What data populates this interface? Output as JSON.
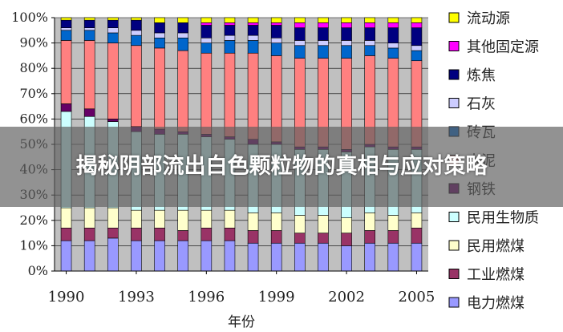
{
  "overlay": {
    "title": "揭秘阴部流出白色颗粒物的真相与应对策略"
  },
  "chart_data": {
    "type": "bar",
    "stacked": true,
    "percent_stacked": true,
    "title": "",
    "xlabel": "年份",
    "ylabel": "",
    "ylim": [
      0,
      100
    ],
    "y_ticks": [
      "0%",
      "10%",
      "20%",
      "30%",
      "40%",
      "50%",
      "60%",
      "70%",
      "80%",
      "90%",
      "100%"
    ],
    "x_tick_labels": [
      "1990",
      "1993",
      "1996",
      "1999",
      "2002",
      "2005"
    ],
    "categories": [
      "1990",
      "1991",
      "1992",
      "1993",
      "1994",
      "1995",
      "1996",
      "1997",
      "1998",
      "1999",
      "2000",
      "2001",
      "2002",
      "2003",
      "2004",
      "2005"
    ],
    "grid": true,
    "legend_position": "right",
    "series": [
      {
        "name": "电力燃煤",
        "color": "#9999ff",
        "values": [
          12,
          12,
          13,
          12,
          12,
          12,
          12,
          12,
          11,
          11,
          11,
          11,
          10,
          11,
          11,
          11
        ]
      },
      {
        "name": "工业燃煤",
        "color": "#993366",
        "values": [
          5,
          5,
          4,
          5,
          5,
          4,
          5,
          5,
          5,
          5,
          4,
          4,
          5,
          5,
          5,
          6
        ]
      },
      {
        "name": "民用燃煤",
        "color": "#ffffcc",
        "values": [
          8,
          8,
          8,
          7,
          7,
          8,
          7,
          7,
          7,
          7,
          7,
          7,
          6,
          7,
          6,
          6
        ]
      },
      {
        "name": "民用生物质",
        "color": "#ccffff",
        "values": [
          38,
          36,
          34,
          31,
          30,
          30,
          29,
          28,
          27,
          27,
          26,
          26,
          26,
          26,
          26,
          25
        ]
      },
      {
        "name": "钢铁",
        "color": "#660066",
        "values": [
          3,
          3,
          1,
          2,
          2,
          1,
          1,
          1,
          2,
          1,
          1,
          1,
          1,
          1,
          1,
          1
        ]
      },
      {
        "name": "水泥",
        "color": "#ff8080",
        "values": [
          25,
          27,
          30,
          32,
          32,
          32,
          32,
          33,
          34,
          34,
          35,
          35,
          36,
          35,
          35,
          34
        ]
      },
      {
        "name": "砖瓦",
        "color": "#0066cc",
        "values": [
          4,
          4,
          4,
          4,
          4,
          5,
          4,
          5,
          5,
          5,
          5,
          5,
          5,
          4,
          4,
          4
        ]
      },
      {
        "name": "石灰",
        "color": "#ccccff",
        "values": [
          1,
          1,
          2,
          2,
          2,
          2,
          2,
          2,
          2,
          2,
          2,
          2,
          2,
          2,
          2,
          2
        ]
      },
      {
        "name": "炼焦",
        "color": "#000080",
        "values": [
          3,
          3,
          3,
          4,
          4,
          4,
          5,
          4,
          4,
          5,
          5,
          5,
          5,
          5,
          6,
          7
        ]
      },
      {
        "name": "其他固定源",
        "color": "#ff00ff",
        "values": [
          0,
          0,
          0,
          0,
          0,
          0,
          1,
          1,
          1,
          1,
          2,
          2,
          2,
          2,
          2,
          2
        ]
      },
      {
        "name": "流动源",
        "color": "#ffff00",
        "values": [
          1,
          1,
          1,
          1,
          2,
          2,
          2,
          2,
          2,
          2,
          2,
          2,
          2,
          2,
          2,
          2
        ]
      }
    ]
  }
}
